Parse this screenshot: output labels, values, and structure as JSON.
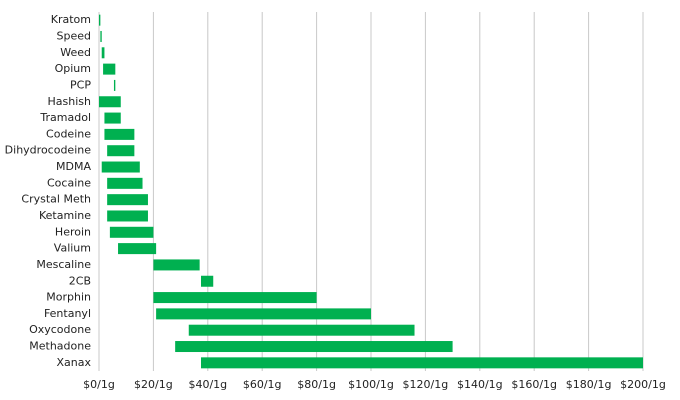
{
  "chart_data": {
    "type": "floating-bar",
    "orientation": "horizontal",
    "color": "#00b050",
    "categories": [
      "Kratom",
      "Speed",
      "Weed",
      "Opium",
      "PCP",
      "Hashish",
      "Tramadol",
      "Codeine",
      "Dihydrocodeine",
      "MDMA",
      "Cocaine",
      "Crystal Meth",
      "Ketamine",
      "Heroin",
      "Valium",
      "Mescaline",
      "2CB",
      "Morphin",
      "Fentanyl",
      "Oxycodone",
      "Methadone",
      "Xanax"
    ],
    "low": [
      0,
      0.5,
      1,
      1.5,
      5.5,
      0,
      2,
      2,
      3,
      1,
      3,
      3,
      3,
      4,
      7,
      20,
      37.5,
      20,
      21,
      33,
      28,
      37.5
    ],
    "high": [
      0.5,
      1,
      2,
      6,
      6,
      8,
      8,
      13,
      13,
      15,
      16,
      18,
      18,
      20,
      21,
      37,
      42,
      80,
      100,
      116,
      130,
      200
    ],
    "xlim": [
      0,
      200
    ],
    "xticks": [
      {
        "value": 0,
        "label": "$0/1g"
      },
      {
        "value": 20,
        "label": "$20/1g"
      },
      {
        "value": 40,
        "label": "$40/1g"
      },
      {
        "value": 60,
        "label": "$60/1g"
      },
      {
        "value": 80,
        "label": "$80/1g"
      },
      {
        "value": 100,
        "label": "$100/1g"
      },
      {
        "value": 120,
        "label": "$120/1g"
      },
      {
        "value": 140,
        "label": "$140/1g"
      },
      {
        "value": 160,
        "label": "$160/1g"
      },
      {
        "value": 180,
        "label": "$180/1g"
      },
      {
        "value": 200,
        "label": "$200/1g"
      }
    ],
    "grid": true
  }
}
